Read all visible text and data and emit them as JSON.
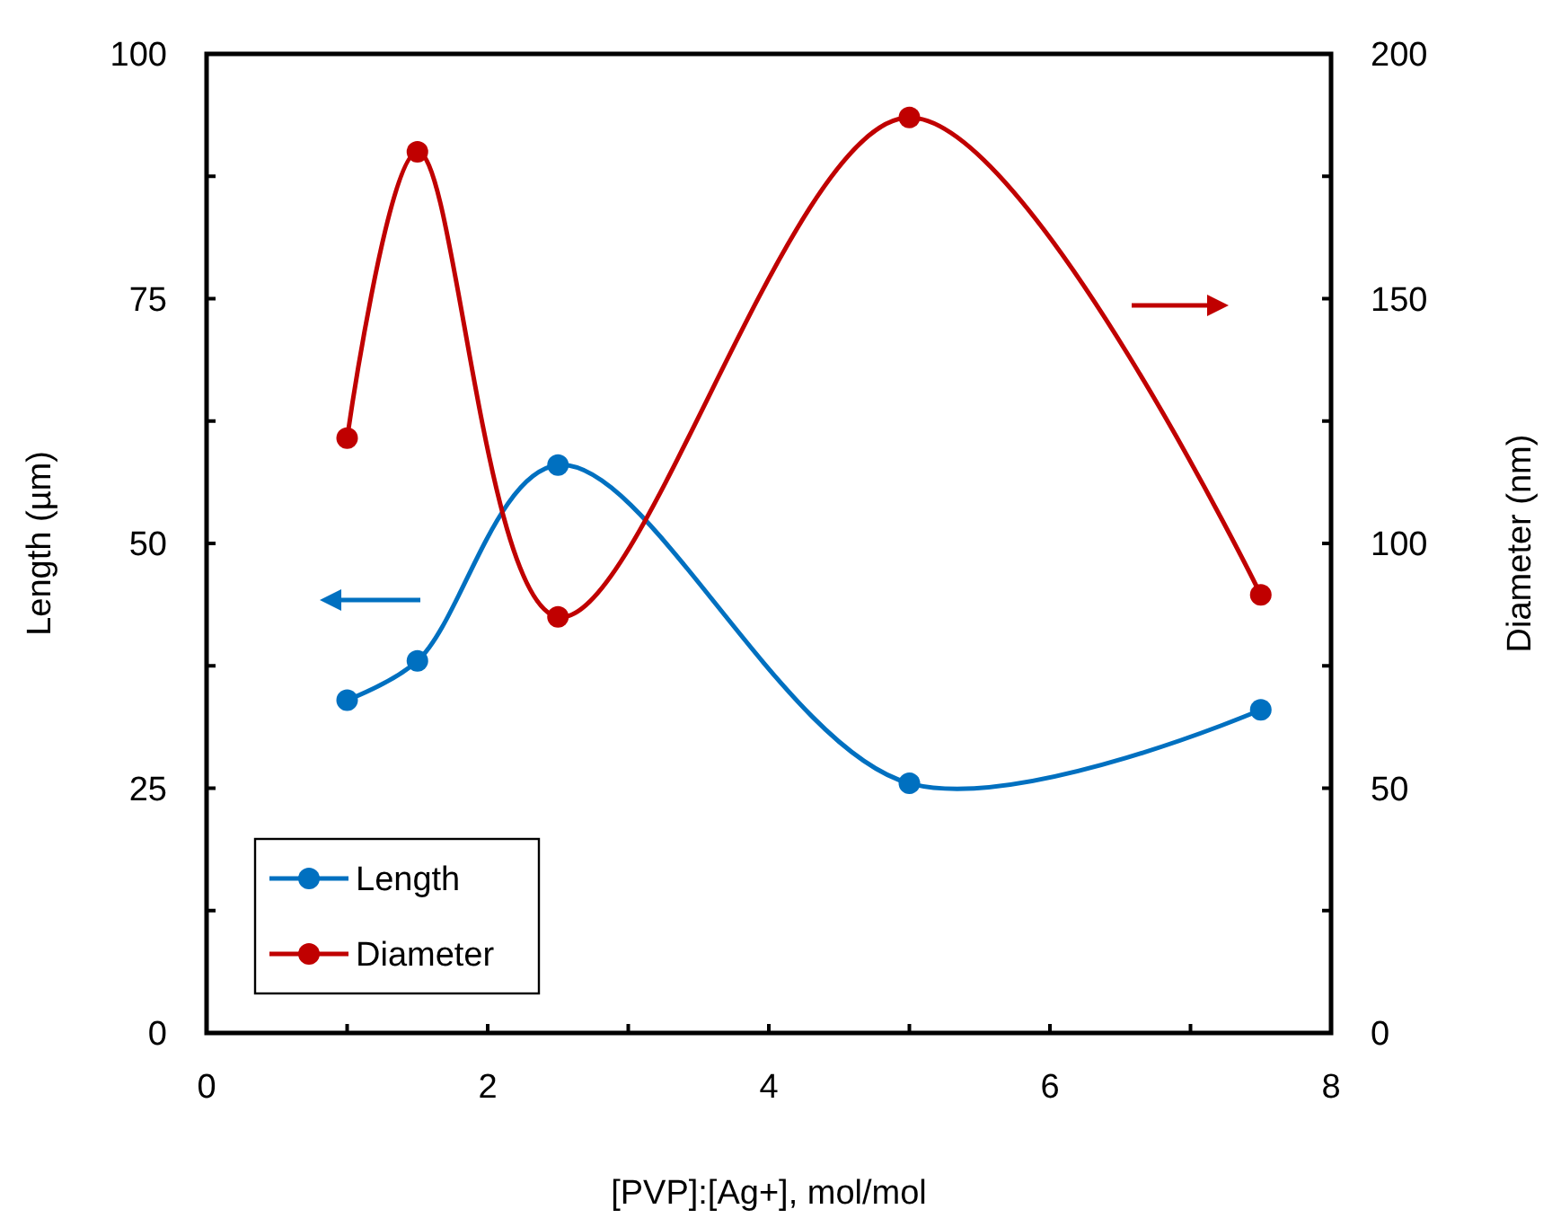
{
  "chart_data": {
    "type": "line",
    "xlabel": "[PVP]:[Ag+], mol/mol",
    "ylabel": "Length (µm)",
    "y2label": "Diameter (nm)",
    "x": [
      1,
      1.5,
      2.5,
      5,
      7.5
    ],
    "series": [
      {
        "name": "Length",
        "color": "#0070c0",
        "values": [
          34,
          38,
          58,
          25.5,
          33
        ]
      },
      {
        "name": "Diameter",
        "color": "#c00000",
        "values": [
          121.5,
          180,
          85,
          187,
          89.5
        ],
        "axis": "y2"
      }
    ],
    "xlim": [
      0,
      8
    ],
    "xticks": [
      0,
      {
        "value": 1,
        "label": null
      },
      2,
      {
        "value": 3,
        "label": null
      },
      4,
      {
        "value": 5,
        "label": null
      },
      6,
      {
        "value": 7,
        "label": null
      },
      8
    ],
    "ylim": [
      0,
      100
    ],
    "yticks": [
      0,
      {
        "value": 12.5,
        "label": null
      },
      25,
      {
        "value": 37.5,
        "label": null
      },
      50,
      {
        "value": 62.5,
        "label": null
      },
      75,
      {
        "value": 87.5,
        "label": null
      },
      100
    ],
    "y2lim": [
      0,
      200
    ],
    "y2ticks": [
      0,
      {
        "value": 25,
        "label": null
      },
      50,
      {
        "value": 75,
        "label": null
      },
      100,
      {
        "value": 125,
        "label": null
      },
      150,
      {
        "value": 175,
        "label": null
      },
      200
    ],
    "legend": "bottom left",
    "marker": "circle",
    "line_style": "solid"
  }
}
